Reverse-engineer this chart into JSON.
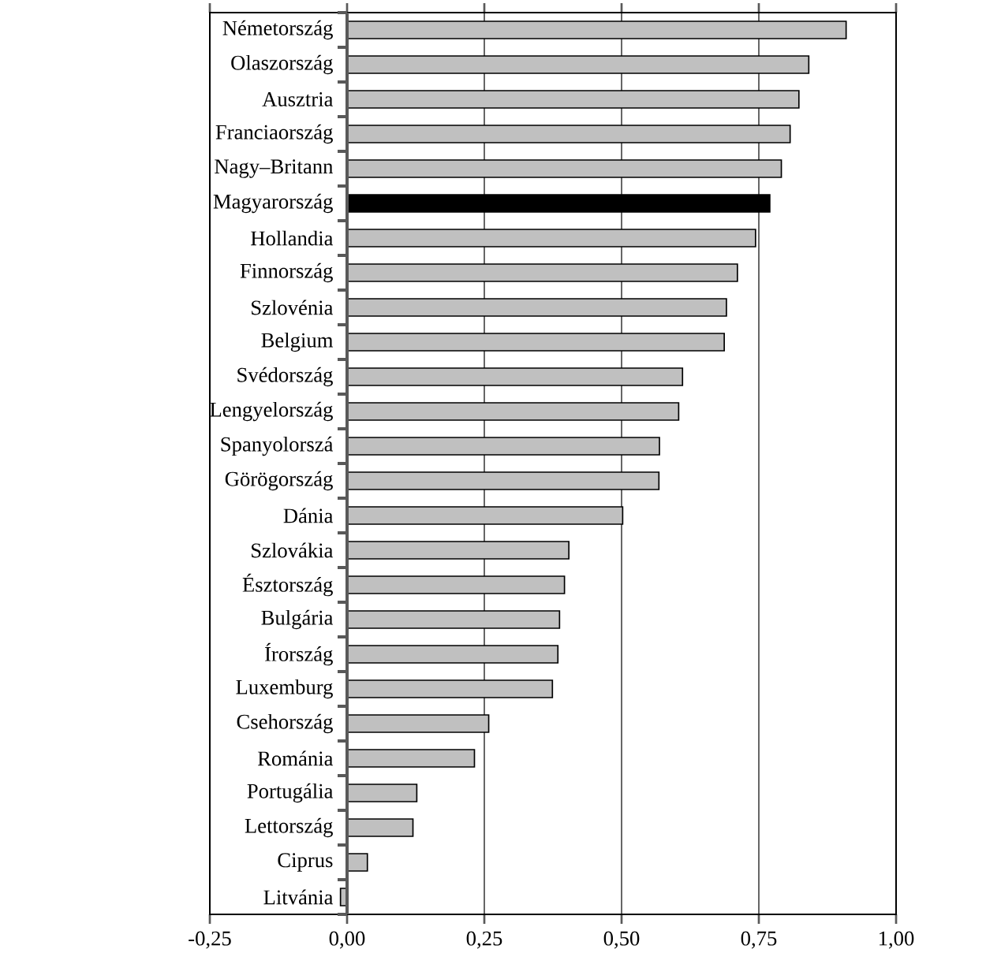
{
  "chart_data": {
    "type": "bar",
    "orientation": "horizontal",
    "categories": [
      "Németország",
      "Olaszország",
      "Ausztria",
      "Franciaország",
      "Nagy–Britann",
      "Magyarország",
      "Hollandia",
      "Finnország",
      "Szlovénia",
      "Belgium",
      "Svédország",
      "Lengyelország",
      "Spanyolorszá",
      "Görögország",
      "Dánia",
      "Szlovákia",
      "Észtország",
      "Bulgária",
      "Írország",
      "Luxemburg",
      "Csehország",
      "Románia",
      "Portugália",
      "Lettország",
      "Ciprus",
      "Litvánia"
    ],
    "values": [
      0.909,
      0.841,
      0.823,
      0.807,
      0.791,
      0.77,
      0.744,
      0.711,
      0.691,
      0.687,
      0.611,
      0.604,
      0.569,
      0.568,
      0.502,
      0.404,
      0.396,
      0.387,
      0.384,
      0.374,
      0.258,
      0.232,
      0.127,
      0.12,
      0.037,
      -0.012
    ],
    "colors": [
      "#c0c0c0",
      "#c0c0c0",
      "#c0c0c0",
      "#c0c0c0",
      "#c0c0c0",
      "#000000",
      "#c0c0c0",
      "#c0c0c0",
      "#c0c0c0",
      "#c0c0c0",
      "#c0c0c0",
      "#c0c0c0",
      "#c0c0c0",
      "#c0c0c0",
      "#c0c0c0",
      "#c0c0c0",
      "#c0c0c0",
      "#c0c0c0",
      "#c0c0c0",
      "#c0c0c0",
      "#c0c0c0",
      "#c0c0c0",
      "#c0c0c0",
      "#c0c0c0",
      "#c0c0c0",
      "#c0c0c0"
    ],
    "xlim": [
      -0.25,
      1.0
    ],
    "xticks": [
      {
        "value": -0.25,
        "label": "-0,25"
      },
      {
        "value": 0,
        "label": "0,00"
      },
      {
        "value": 0.25,
        "label": "0,25"
      },
      {
        "value": 0.5,
        "label": "0,50"
      },
      {
        "value": 0.75,
        "label": "0,75"
      },
      {
        "value": 1.0,
        "label": "1,00"
      }
    ],
    "grid": "x"
  }
}
